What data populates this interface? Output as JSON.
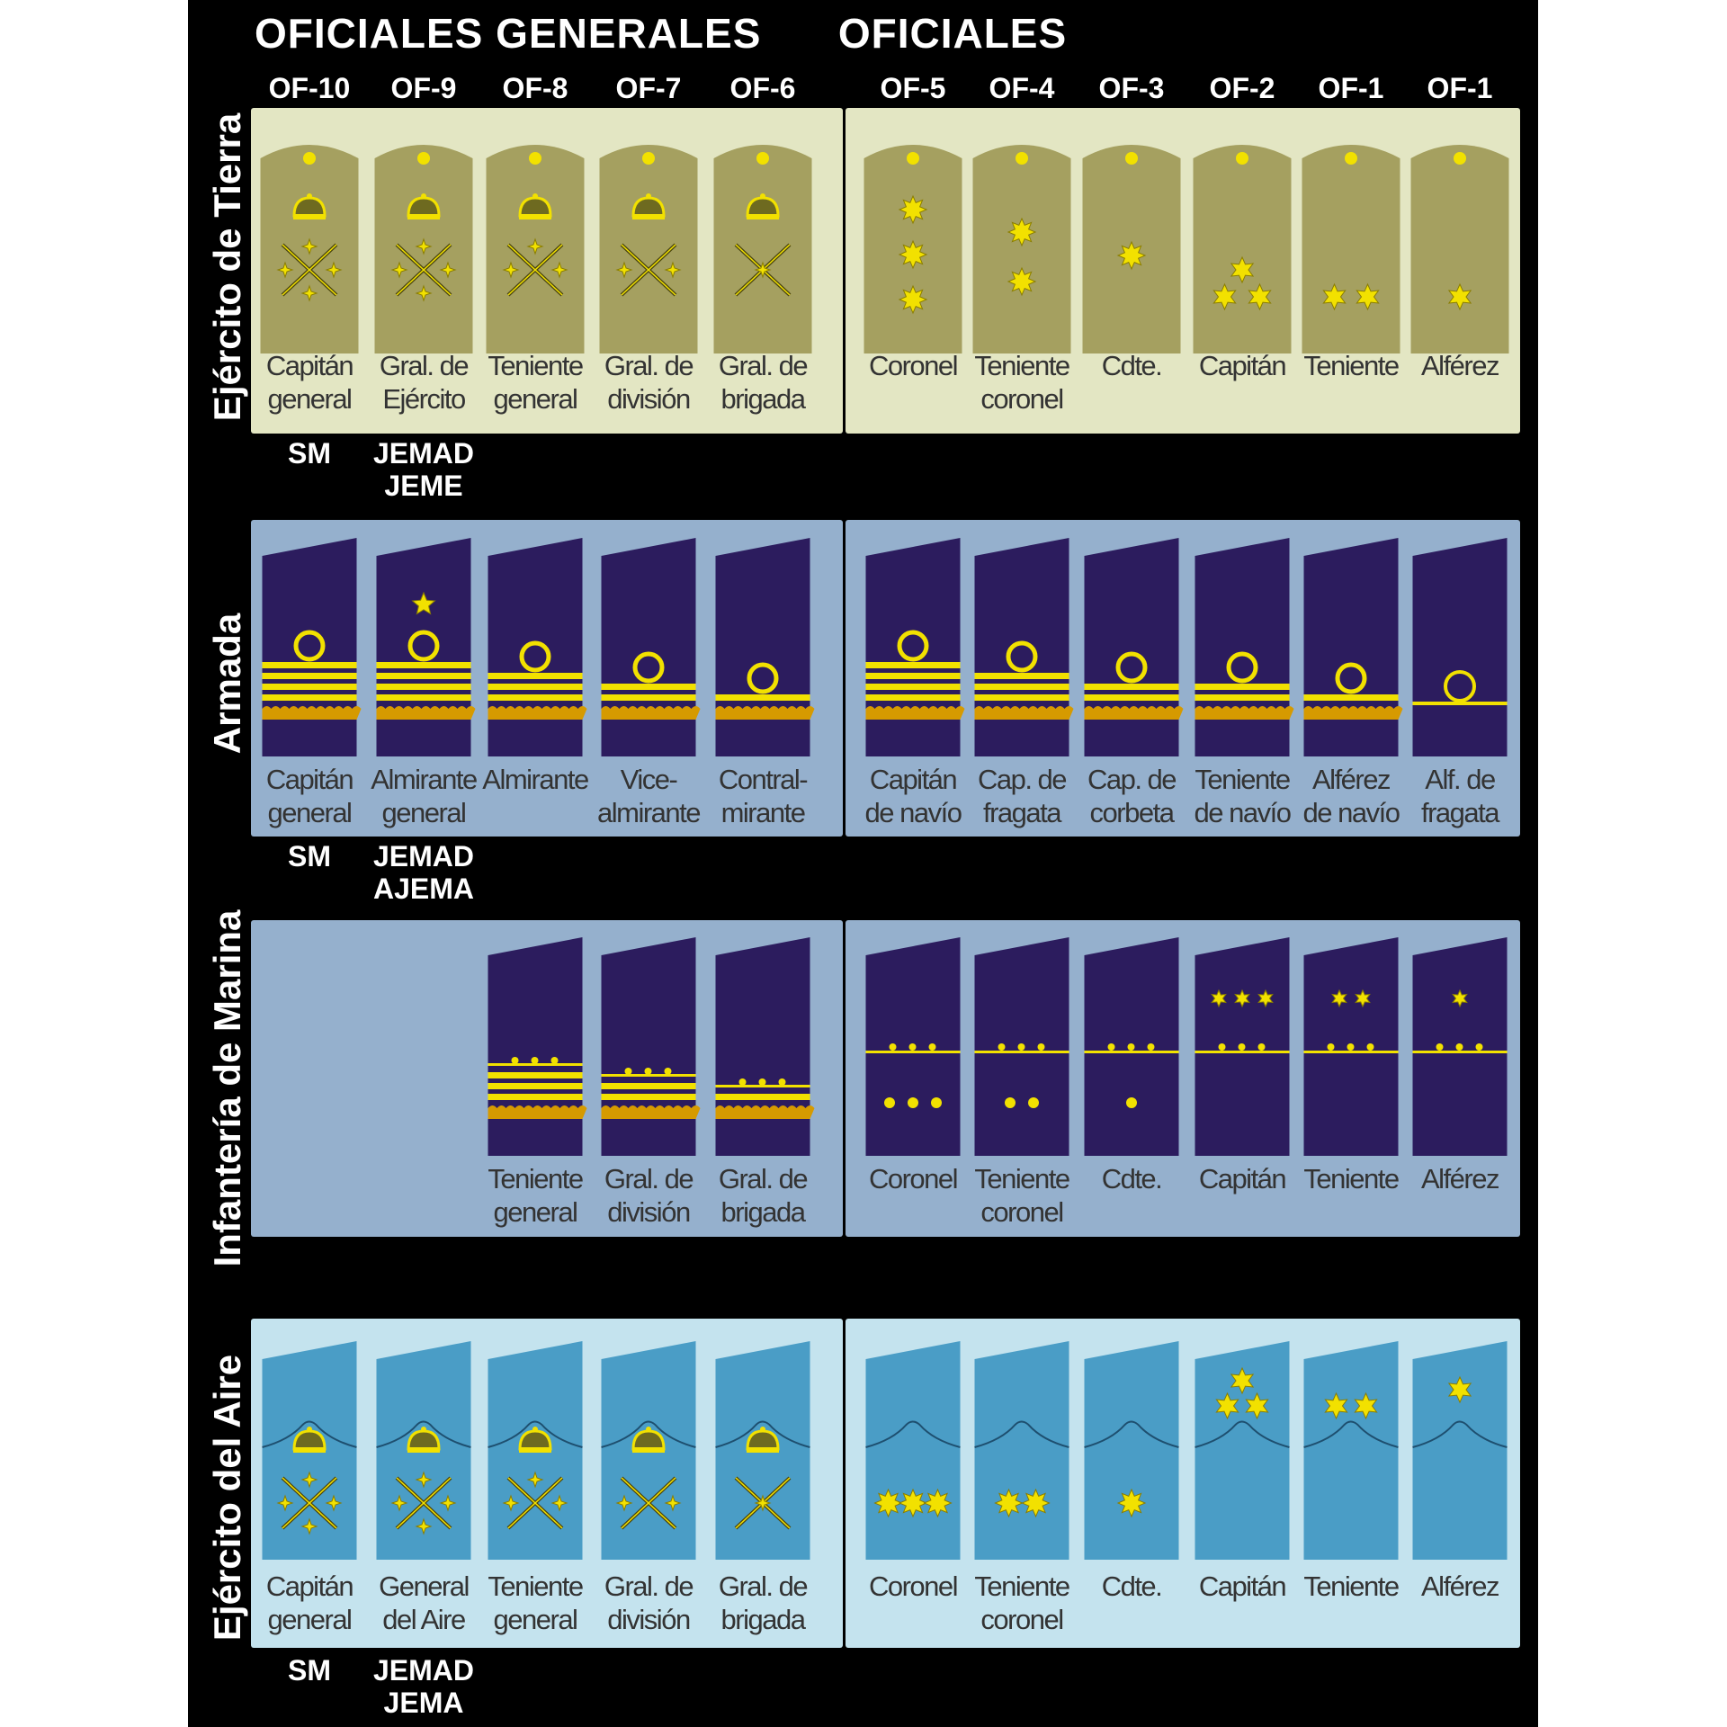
{
  "headers": {
    "general": "OFICIALES GENERALES",
    "officers": "OFICIALES"
  },
  "codes": [
    "OF-10",
    "OF-9",
    "OF-8",
    "OF-7",
    "OF-6",
    "OF-5",
    "OF-4",
    "OF-3",
    "OF-2",
    "OF-1",
    "OF-1"
  ],
  "colors": {
    "background": "#000000",
    "gold": "#f2e100",
    "army_panel": "#e3e6c3",
    "army_board": "#a5a060",
    "navy_panel": "#95b0cd",
    "navy_board": "#2c1c5e",
    "air_panel": "#c4e3ee",
    "air_board": "#4a9dc6"
  },
  "services": [
    {
      "name": "Ejército de Tierra",
      "style": "army",
      "ranks": [
        {
          "label": [
            "Capitán",
            "general"
          ],
          "insignia": "crown-baton-sabre-4stars"
        },
        {
          "label": [
            "Gral. de",
            "Ejército"
          ],
          "insignia": "crown-baton-sabre-4stars"
        },
        {
          "label": [
            "Teniente",
            "general"
          ],
          "insignia": "crown-baton-sabre-3stars"
        },
        {
          "label": [
            "Gral. de",
            "división"
          ],
          "insignia": "crown-baton-sabre-2stars"
        },
        {
          "label": [
            "Gral. de",
            "brigada"
          ],
          "insignia": "crown-baton-sabre-1star"
        },
        {
          "label": [
            "Coronel"
          ],
          "insignia": "3 eight-point stars"
        },
        {
          "label": [
            "Teniente",
            "coronel"
          ],
          "insignia": "2 eight-point stars"
        },
        {
          "label": [
            "Cdte."
          ],
          "insignia": "1 eight-point star"
        },
        {
          "label": [
            "Capitán"
          ],
          "insignia": "3 six-point stars"
        },
        {
          "label": [
            "Teniente"
          ],
          "insignia": "2 six-point stars"
        },
        {
          "label": [
            "Alférez"
          ],
          "insignia": "1 six-point star"
        }
      ],
      "appointments": [
        [
          "SM"
        ],
        [
          "JEMAD",
          "JEME"
        ]
      ]
    },
    {
      "name": "Armada",
      "style": "navy",
      "ranks": [
        {
          "label": [
            "Capitán",
            "general"
          ],
          "insignia": "loop-4stripes"
        },
        {
          "label": [
            "Almirante",
            "general"
          ],
          "insignia": "star-loop-4stripes"
        },
        {
          "label": [
            "Almirante"
          ],
          "insignia": "loop-3stripes"
        },
        {
          "label": [
            "Vice-",
            "almirante"
          ],
          "insignia": "loop-2stripes"
        },
        {
          "label": [
            "Contral-",
            "mirante"
          ],
          "insignia": "loop-1stripe"
        },
        {
          "label": [
            "Capitán",
            "de navío"
          ],
          "insignia": "loop-4stripes"
        },
        {
          "label": [
            "Cap. de",
            "fragata"
          ],
          "insignia": "loop-3stripes"
        },
        {
          "label": [
            "Cap. de",
            "corbeta"
          ],
          "insignia": "loop-2stripes"
        },
        {
          "label": [
            "Teniente",
            "de navío"
          ],
          "insignia": "loop-2stripes"
        },
        {
          "label": [
            "Alférez",
            "de navío"
          ],
          "insignia": "loop-1stripe"
        },
        {
          "label": [
            "Alf. de",
            "fragata"
          ],
          "insignia": "loop-thin"
        }
      ],
      "appointments": [
        [
          "SM"
        ],
        [
          "JEMAD",
          "AJEMA"
        ]
      ]
    },
    {
      "name": "Infantería de Marina",
      "style": "marines",
      "ranks": [
        {
          "label": [],
          "insignia": "none"
        },
        {
          "label": [],
          "insignia": "none"
        },
        {
          "label": [
            "Teniente",
            "general"
          ],
          "insignia": "3stripes"
        },
        {
          "label": [
            "Gral. de",
            "división"
          ],
          "insignia": "2stripes"
        },
        {
          "label": [
            "Gral. de",
            "brigada"
          ],
          "insignia": "1stripe"
        },
        {
          "label": [
            "Coronel"
          ],
          "insignia": "3 stars below"
        },
        {
          "label": [
            "Teniente",
            "coronel"
          ],
          "insignia": "2 stars below"
        },
        {
          "label": [
            "Cdte."
          ],
          "insignia": "1 star below"
        },
        {
          "label": [
            "Capitán"
          ],
          "insignia": "3 stars above"
        },
        {
          "label": [
            "Teniente"
          ],
          "insignia": "2 stars above"
        },
        {
          "label": [
            "Alférez"
          ],
          "insignia": "1 star above"
        }
      ],
      "appointments": []
    },
    {
      "name": "Ejército del Aire",
      "style": "air",
      "ranks": [
        {
          "label": [
            "Capitán",
            "general"
          ],
          "insignia": "crown-baton-sabre-4stars"
        },
        {
          "label": [
            "General",
            "del Aire"
          ],
          "insignia": "crown-baton-sabre-4stars"
        },
        {
          "label": [
            "Teniente",
            "general"
          ],
          "insignia": "crown-baton-sabre-3stars"
        },
        {
          "label": [
            "Gral. de",
            "división"
          ],
          "insignia": "crown-baton-sabre-2stars"
        },
        {
          "label": [
            "Gral. de",
            "brigada"
          ],
          "insignia": "crown-baton-sabre-1star"
        },
        {
          "label": [
            "Coronel"
          ],
          "insignia": "3 eight-point stars"
        },
        {
          "label": [
            "Teniente",
            "coronel"
          ],
          "insignia": "2 eight-point stars"
        },
        {
          "label": [
            "Cdte."
          ],
          "insignia": "1 eight-point star"
        },
        {
          "label": [
            "Capitán"
          ],
          "insignia": "3 six-point stars"
        },
        {
          "label": [
            "Teniente"
          ],
          "insignia": "2 six-point stars"
        },
        {
          "label": [
            "Alférez"
          ],
          "insignia": "1 six-point star"
        }
      ],
      "appointments": [
        [
          "SM"
        ],
        [
          "JEMAD",
          "JEMA"
        ]
      ]
    }
  ]
}
